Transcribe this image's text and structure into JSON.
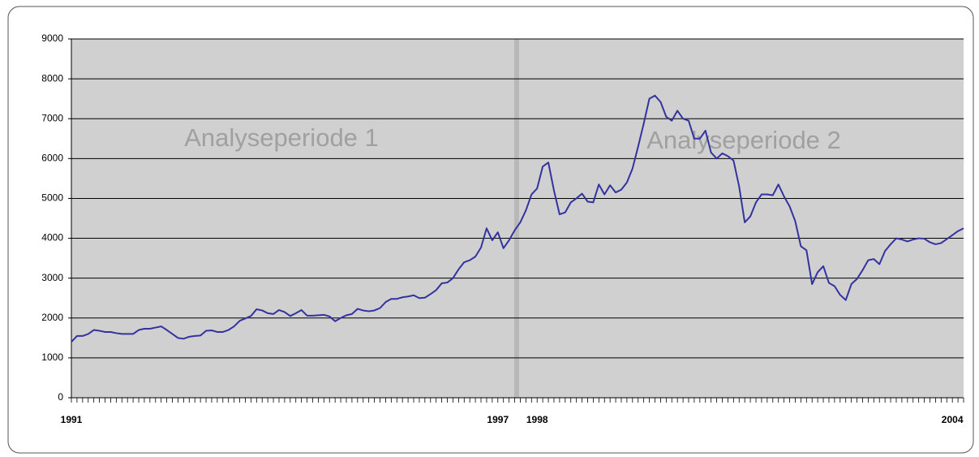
{
  "chart_data": {
    "type": "line",
    "annotations": [
      "Analyseperiode 1",
      "Analyseperiode 2"
    ],
    "categories": [
      "1991",
      null,
      null,
      null,
      null,
      null,
      null,
      null,
      null,
      null,
      null,
      null,
      null,
      null,
      null,
      null,
      null,
      null,
      null,
      null,
      null,
      null,
      null,
      null,
      null,
      null,
      null,
      null,
      null,
      null,
      null,
      null,
      null,
      null,
      null,
      null,
      null,
      null,
      null,
      null,
      null,
      null,
      null,
      null,
      null,
      null,
      null,
      null,
      null,
      null,
      null,
      null,
      null,
      null,
      null,
      null,
      null,
      null,
      null,
      null,
      null,
      null,
      null,
      null,
      null,
      null,
      null,
      null,
      null,
      null,
      null,
      null,
      null,
      null,
      null,
      null,
      "1997",
      null,
      null,
      null,
      null,
      null,
      null,
      "1998",
      null,
      null,
      null,
      null,
      null,
      null,
      null,
      null,
      null,
      null,
      null,
      null,
      null,
      null,
      null,
      null,
      null,
      null,
      null,
      null,
      null,
      null,
      null,
      null,
      null,
      null,
      null,
      null,
      null,
      null,
      null,
      null,
      null,
      null,
      null,
      null,
      null,
      null,
      null,
      null,
      null,
      null,
      null,
      null,
      null,
      null,
      null,
      null,
      null,
      null,
      null,
      null,
      null,
      null,
      null,
      null,
      null,
      null,
      null,
      null,
      null,
      null,
      null,
      null,
      null,
      null,
      null,
      null,
      null,
      null,
      null,
      null,
      null,
      "2004",
      null,
      null
    ],
    "series": [
      {
        "color": "#3333a0",
        "values": [
          1400,
          1550,
          1550,
          1600,
          1700,
          1680,
          1650,
          1650,
          1620,
          1600,
          1600,
          1600,
          1700,
          1730,
          1730,
          1760,
          1790,
          1700,
          1600,
          1500,
          1480,
          1530,
          1550,
          1560,
          1680,
          1690,
          1650,
          1650,
          1700,
          1790,
          1930,
          1990,
          2050,
          2220,
          2190,
          2120,
          2100,
          2200,
          2150,
          2050,
          2120,
          2200,
          2060,
          2060,
          2070,
          2080,
          2040,
          1920,
          2000,
          2070,
          2100,
          2230,
          2190,
          2170,
          2190,
          2250,
          2400,
          2480,
          2480,
          2520,
          2540,
          2570,
          2500,
          2510,
          2600,
          2700,
          2870,
          2890,
          3000,
          3220,
          3400,
          3450,
          3540,
          3770,
          4250,
          3950,
          4150,
          3750,
          3950,
          4200,
          4400,
          4700,
          5100,
          5250,
          5800,
          5900,
          5200,
          4600,
          4650,
          4900,
          5000,
          5120,
          4920,
          4900,
          5350,
          5100,
          5330,
          5150,
          5220,
          5400,
          5750,
          6300,
          6880,
          7500,
          7580,
          7420,
          7050,
          6950,
          7200,
          7000,
          6950,
          6500,
          6500,
          6700,
          6150,
          6000,
          6130,
          6060,
          5950,
          5300,
          4400,
          4550,
          4900,
          5100,
          5100,
          5080,
          5350,
          5050,
          4800,
          4430,
          3800,
          3700,
          2850,
          3150,
          3300,
          2880,
          2800,
          2580,
          2450,
          2850,
          2980,
          3200,
          3450,
          3480,
          3350,
          3680,
          3850,
          4000,
          3970,
          3920,
          3970,
          4000,
          3990,
          3900,
          3850,
          3880,
          3980,
          4080,
          4180,
          4250
        ]
      }
    ],
    "ylim": [
      0,
      9000
    ],
    "yticks": [
      0,
      1000,
      2000,
      3000,
      4000,
      5000,
      6000,
      7000,
      8000,
      9000
    ],
    "grid": true
  }
}
